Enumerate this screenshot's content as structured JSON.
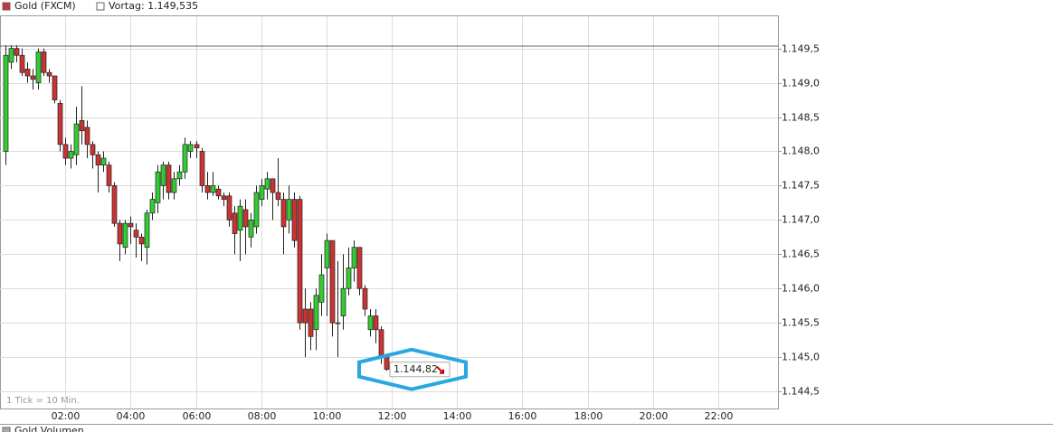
{
  "chart_data": {
    "type": "candlestick",
    "title": "Gold (FXCM)",
    "note": "1 Tick = 10 Min.",
    "bottom_panel_title": "Gold Volumen",
    "previous_close": {
      "value": 1149.535,
      "label": "Vortag: 1.149,535"
    },
    "last_price": {
      "value": 1144.82,
      "label": "1.144,82"
    },
    "up_color": "#33cc33",
    "down_color": "#cc3333",
    "grid": true,
    "xlim": [
      "00:00",
      "23:50"
    ],
    "xticks": [
      "02:00",
      "04:00",
      "06:00",
      "08:00",
      "10:00",
      "12:00",
      "14:00",
      "16:00",
      "18:00",
      "20:00",
      "22:00"
    ],
    "ylim": [
      1144.25,
      1149.97
    ],
    "yticks": [
      {
        "value": 1144.5,
        "label": "1.144,5"
      },
      {
        "value": 1145.0,
        "label": "1.145,0"
      },
      {
        "value": 1145.5,
        "label": "1.145,5"
      },
      {
        "value": 1146.0,
        "label": "1.146,0"
      },
      {
        "value": 1146.5,
        "label": "1.146,5"
      },
      {
        "value": 1147.0,
        "label": "1.147,0"
      },
      {
        "value": 1147.5,
        "label": "1.147,5"
      },
      {
        "value": 1148.0,
        "label": "1.148,0"
      },
      {
        "value": 1148.5,
        "label": "1.148,5"
      },
      {
        "value": 1149.0,
        "label": "1.149,0"
      },
      {
        "value": 1149.5,
        "label": "1.149,5"
      }
    ],
    "x": [
      "00:10",
      "00:20",
      "00:30",
      "00:40",
      "00:50",
      "01:00",
      "01:10",
      "01:20",
      "01:30",
      "01:40",
      "01:50",
      "02:00",
      "02:10",
      "02:20",
      "02:30",
      "02:40",
      "02:50",
      "03:00",
      "03:10",
      "03:20",
      "03:30",
      "03:40",
      "03:50",
      "04:00",
      "04:10",
      "04:20",
      "04:30",
      "04:40",
      "04:50",
      "05:00",
      "05:10",
      "05:20",
      "05:30",
      "05:40",
      "05:50",
      "06:00",
      "06:10",
      "06:20",
      "06:30",
      "06:40",
      "06:50",
      "07:00",
      "07:10",
      "07:20",
      "07:30",
      "07:40",
      "07:50",
      "08:00",
      "08:10",
      "08:20",
      "08:30",
      "08:40",
      "08:50",
      "09:00",
      "09:10",
      "09:20",
      "09:30",
      "09:40",
      "09:50",
      "10:00",
      "10:10",
      "10:20",
      "10:30",
      "10:40",
      "10:50",
      "11:00",
      "11:10",
      "11:20",
      "11:30",
      "11:40",
      "11:50"
    ],
    "open": [
      1148.0,
      1149.3,
      1149.5,
      1149.4,
      1149.2,
      1149.1,
      1149.0,
      1149.45,
      1149.15,
      1149.1,
      1148.7,
      1148.1,
      1147.9,
      1147.95,
      1148.45,
      1148.35,
      1148.1,
      1147.95,
      1147.8,
      1147.8,
      1147.5,
      1146.95,
      1146.6,
      1146.95,
      1146.85,
      1146.75,
      1146.6,
      1147.1,
      1147.25,
      1147.5,
      1147.8,
      1147.4,
      1147.6,
      1147.7,
      1148.0,
      1148.1,
      1148.0,
      1147.5,
      1147.4,
      1147.45,
      1147.35,
      1147.35,
      1147.1,
      1146.85,
      1147.15,
      1146.75,
      1146.9,
      1147.3,
      1147.45,
      1147.6,
      1147.4,
      1147.3,
      1147.0,
      1147.3,
      1147.3,
      1145.7,
      1145.7,
      1145.4,
      1145.8,
      1146.3,
      1146.7,
      1145.5,
      1145.6,
      1146.0,
      1146.3,
      1146.6,
      1146.0,
      1145.4,
      1145.6,
      1145.4,
      1145.0
    ],
    "high": [
      1149.55,
      1149.55,
      1149.55,
      1149.5,
      1149.3,
      1149.2,
      1149.5,
      1149.5,
      1149.2,
      1149.1,
      1148.75,
      1148.2,
      1148.1,
      1148.65,
      1148.95,
      1148.45,
      1148.15,
      1148.0,
      1148.0,
      1147.85,
      1147.55,
      1147.0,
      1147.0,
      1147.05,
      1146.95,
      1146.8,
      1147.15,
      1147.4,
      1147.8,
      1147.85,
      1147.85,
      1147.7,
      1147.8,
      1148.2,
      1148.15,
      1148.15,
      1148.05,
      1147.7,
      1147.7,
      1147.5,
      1147.4,
      1147.4,
      1147.2,
      1147.3,
      1147.3,
      1147.1,
      1147.5,
      1147.6,
      1147.7,
      1147.6,
      1147.9,
      1147.4,
      1147.5,
      1147.4,
      1147.35,
      1146.0,
      1145.8,
      1146.0,
      1146.5,
      1146.8,
      1146.7,
      1146.4,
      1146.5,
      1146.6,
      1146.7,
      1146.6,
      1146.05,
      1145.7,
      1145.7,
      1145.45,
      1145.05
    ],
    "low": [
      1147.8,
      1149.2,
      1149.3,
      1149.1,
      1149.0,
      1148.9,
      1148.9,
      1149.1,
      1149.0,
      1148.7,
      1148.0,
      1147.8,
      1147.75,
      1147.8,
      1148.1,
      1147.9,
      1147.75,
      1147.4,
      1147.7,
      1147.4,
      1146.9,
      1146.4,
      1146.5,
      1146.65,
      1146.45,
      1146.4,
      1146.35,
      1147.0,
      1147.1,
      1147.3,
      1147.3,
      1147.3,
      1147.5,
      1147.6,
      1147.9,
      1147.9,
      1147.4,
      1147.3,
      1147.35,
      1147.3,
      1147.2,
      1146.9,
      1146.5,
      1146.4,
      1146.5,
      1146.6,
      1146.8,
      1147.2,
      1147.3,
      1147.0,
      1147.2,
      1146.5,
      1146.8,
      1146.6,
      1145.4,
      1145.0,
      1145.1,
      1145.1,
      1145.6,
      1145.6,
      1145.3,
      1145.0,
      1145.4,
      1145.9,
      1146.1,
      1145.9,
      1145.6,
      1145.3,
      1145.2,
      1144.9,
      1144.8
    ],
    "close": [
      1149.4,
      1149.5,
      1149.4,
      1149.15,
      1149.1,
      1149.05,
      1149.45,
      1149.15,
      1149.1,
      1148.75,
      1148.1,
      1147.9,
      1148.0,
      1148.4,
      1148.3,
      1148.1,
      1147.95,
      1147.8,
      1147.9,
      1147.5,
      1146.95,
      1146.65,
      1146.95,
      1146.9,
      1146.75,
      1146.65,
      1147.1,
      1147.3,
      1147.7,
      1147.8,
      1147.4,
      1147.6,
      1147.7,
      1148.1,
      1148.1,
      1148.05,
      1147.5,
      1147.4,
      1147.5,
      1147.35,
      1147.3,
      1147.0,
      1146.8,
      1147.2,
      1146.9,
      1147.0,
      1147.4,
      1147.5,
      1147.6,
      1147.4,
      1147.3,
      1146.9,
      1147.3,
      1146.7,
      1145.5,
      1145.5,
      1145.3,
      1145.9,
      1146.2,
      1146.7,
      1145.5,
      1145.5,
      1146.0,
      1146.3,
      1146.6,
      1146.0,
      1145.7,
      1145.6,
      1145.4,
      1145.0,
      1144.82
    ]
  }
}
